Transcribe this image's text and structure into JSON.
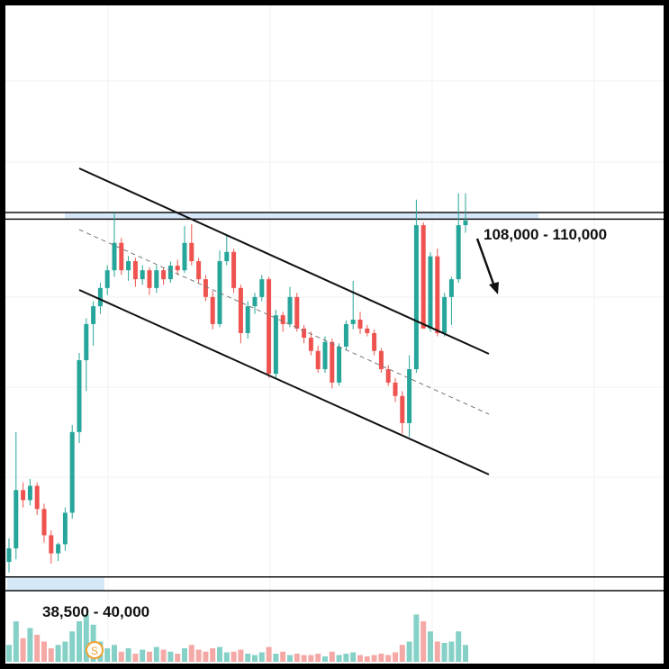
{
  "chart_data": {
    "type": "candlestick",
    "log": true,
    "ylim": [
      38500,
      194500
    ],
    "volume_lim": [
      0,
      100
    ],
    "up_color": "#26a69a",
    "down_color": "#ef5350",
    "volume_up_color": "#86d1c7",
    "volume_down_color": "#f5a9a7",
    "zone_color": "#d6e8f8",
    "badge": "S",
    "zones": [
      {
        "label": "108,000 - 110,000",
        "low": 108000,
        "high": 110000
      },
      {
        "label": "38,500 - 40,000",
        "low": 38500,
        "high": 40000
      }
    ],
    "open": [
      41700,
      43300,
      50900,
      49500,
      51500,
      48300,
      44900,
      42700,
      43800,
      47800,
      59800,
      73000,
      80700,
      84800,
      89200,
      93700,
      101100,
      93700,
      96100,
      91400,
      93700,
      89200,
      93700,
      91400,
      94900,
      93700,
      101100,
      96100,
      91400,
      87000,
      80700,
      96100,
      98600,
      89200,
      78700,
      84800,
      87000,
      91400,
      70300,
      82700,
      80700,
      87000,
      79700,
      77700,
      74900,
      71200,
      76800,
      68600,
      75800,
      80700,
      81700,
      79700,
      78700,
      74900,
      71200,
      68600,
      66100,
      61300,
      71200,
      106200,
      79700,
      97400,
      78700,
      87000,
      91400,
      106200
    ],
    "high": [
      44500,
      59800,
      52000,
      52500,
      52000,
      49000,
      45500,
      44000,
      48500,
      61000,
      74500,
      82000,
      86000,
      90500,
      95000,
      110000,
      102500,
      97500,
      97000,
      95000,
      94500,
      95000,
      94500,
      96000,
      96500,
      106000,
      106500,
      97000,
      92500,
      88500,
      99000,
      103500,
      99500,
      90000,
      86000,
      88000,
      92500,
      92000,
      84000,
      83500,
      89500,
      88000,
      80500,
      79000,
      76000,
      78000,
      77500,
      76500,
      81500,
      91000,
      83500,
      80500,
      79500,
      75500,
      72000,
      69500,
      67000,
      74000,
      114000,
      107000,
      98500,
      99500,
      88000,
      92000,
      116000,
      116000
    ],
    "low": [
      40500,
      42000,
      48500,
      48800,
      47500,
      44000,
      41500,
      41800,
      43000,
      47000,
      58000,
      67000,
      76000,
      83000,
      87500,
      92000,
      92500,
      91000,
      89500,
      90000,
      87500,
      88000,
      90000,
      90500,
      92500,
      93000,
      95000,
      90500,
      86000,
      79500,
      80000,
      95000,
      88000,
      76500,
      77500,
      83000,
      86000,
      69500,
      69500,
      79000,
      80000,
      79000,
      76500,
      74000,
      70500,
      70500,
      67500,
      68000,
      75000,
      79500,
      78500,
      78000,
      74000,
      70500,
      68000,
      65000,
      59500,
      59000,
      70500,
      80000,
      79000,
      78000,
      78000,
      80500,
      90500,
      104000
    ],
    "close": [
      43300,
      50900,
      49500,
      51500,
      48300,
      44900,
      42700,
      43800,
      47800,
      59800,
      73000,
      80700,
      84800,
      89200,
      93700,
      101100,
      93700,
      96100,
      91400,
      93700,
      89200,
      93700,
      91400,
      94900,
      93700,
      101100,
      96100,
      91400,
      87000,
      80700,
      96100,
      98600,
      89200,
      78700,
      84800,
      87000,
      91400,
      70300,
      82700,
      80700,
      87000,
      79700,
      77700,
      74900,
      71200,
      76800,
      68600,
      75800,
      80700,
      81700,
      79700,
      78700,
      74900,
      71200,
      68600,
      66100,
      61300,
      71200,
      106200,
      79700,
      97400,
      78700,
      87000,
      91400,
      106200,
      107600
    ],
    "volume": [
      25,
      60,
      35,
      50,
      40,
      30,
      20,
      25,
      30,
      45,
      60,
      70,
      55,
      30,
      20,
      25,
      15,
      20,
      12,
      18,
      15,
      22,
      18,
      15,
      12,
      20,
      25,
      18,
      15,
      20,
      22,
      14,
      15,
      18,
      12,
      10,
      14,
      22,
      12,
      15,
      10,
      12,
      10,
      10,
      12,
      8,
      15,
      10,
      12,
      14,
      10,
      8,
      10,
      12,
      10,
      14,
      25,
      30,
      70,
      60,
      45,
      30,
      28,
      30,
      45,
      25
    ]
  }
}
